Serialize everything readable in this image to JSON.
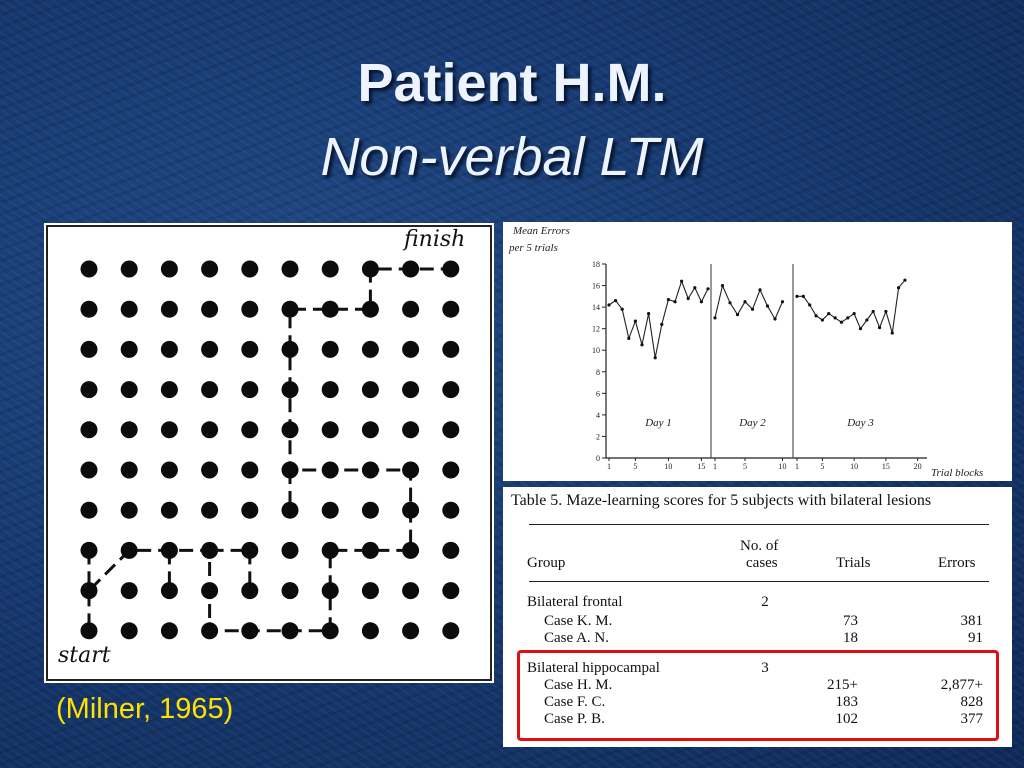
{
  "slide": {
    "title": "Patient H.M.",
    "subtitle": "Non-verbal LTM",
    "citation": "(Milner, 1965)"
  },
  "maze": {
    "label_finish": "finish",
    "label_start": "start",
    "grid_size": 10,
    "path": [
      [
        0,
        2
      ],
      [
        0,
        1
      ],
      [
        1,
        2
      ],
      [
        2,
        2
      ],
      [
        3,
        2
      ],
      [
        3,
        1
      ],
      [
        3,
        0
      ],
      [
        4,
        0
      ],
      [
        5,
        0
      ],
      [
        6,
        0
      ],
      [
        6,
        1
      ],
      [
        6,
        2
      ],
      [
        7,
        2
      ],
      [
        8,
        2
      ],
      [
        8,
        3
      ],
      [
        8,
        4
      ],
      [
        7,
        4
      ],
      [
        6,
        4
      ],
      [
        5,
        4
      ],
      [
        5,
        5
      ],
      [
        5,
        6
      ],
      [
        5,
        7
      ],
      [
        5,
        8
      ],
      [
        6,
        8
      ],
      [
        7,
        8
      ],
      [
        7,
        9
      ],
      [
        8,
        9
      ],
      [
        9,
        9
      ]
    ],
    "stubs": [
      [
        [
          0,
          2
        ],
        [
          0,
          0
        ]
      ],
      [
        [
          2,
          2
        ],
        [
          2,
          1
        ]
      ],
      [
        [
          3,
          2
        ],
        [
          4,
          2
        ]
      ],
      [
        [
          4,
          2
        ],
        [
          4,
          1
        ]
      ],
      [
        [
          5,
          4
        ],
        [
          5,
          3
        ]
      ]
    ]
  },
  "chart_data": {
    "type": "line",
    "ylabel": "Mean Errors per 5 trials",
    "xlabel": "Trial blocks",
    "ylim": [
      0,
      18
    ],
    "yticks": [
      0,
      2,
      4,
      6,
      8,
      10,
      12,
      14,
      16,
      18
    ],
    "grid": false,
    "days": [
      {
        "name": "Day 1",
        "xticks": [
          "1",
          "5",
          "10",
          "15"
        ],
        "max_x": 16,
        "values": [
          14.2,
          14.6,
          13.8,
          11.1,
          12.7,
          10.5,
          13.4,
          9.3,
          12.4,
          14.7,
          14.5,
          16.4,
          14.8,
          15.8,
          14.5,
          15.7
        ]
      },
      {
        "name": "Day 2",
        "xticks": [
          "1",
          "5",
          "10"
        ],
        "max_x": 11,
        "values": [
          13.0,
          16.0,
          14.4,
          13.3,
          14.5,
          13.8,
          15.6,
          14.1,
          12.9,
          14.5
        ]
      },
      {
        "name": "Day 3",
        "xticks": [
          "1",
          "5",
          "10",
          "15",
          "20"
        ],
        "max_x": 21,
        "values": [
          15.0,
          15.0,
          14.2,
          13.2,
          12.8,
          13.4,
          13.0,
          12.6,
          13.0,
          13.4,
          12.0,
          12.8,
          13.6,
          12.1,
          13.6,
          11.6,
          15.8,
          16.5
        ]
      }
    ]
  },
  "table": {
    "caption": "Table 5.  Maze-learning scores for 5 subjects with bilateral lesions",
    "headers": {
      "group": "Group",
      "cases_line1": "No. of",
      "cases_line2": "cases",
      "trials": "Trials",
      "errors": "Errors"
    },
    "rows": [
      {
        "group": "Bilateral frontal",
        "cases": "2",
        "trials": "",
        "errors": "",
        "indent": false
      },
      {
        "group": "Case K. M.",
        "cases": "",
        "trials": "73",
        "errors": "381",
        "indent": true
      },
      {
        "group": "Case A. N.",
        "cases": "",
        "trials": "18",
        "errors": "91",
        "indent": true
      },
      {
        "group": "Bilateral hippocampal",
        "cases": "3",
        "trials": "",
        "errors": "",
        "indent": false
      },
      {
        "group": "Case H. M.",
        "cases": "",
        "trials": "215+",
        "errors": "2,877+",
        "indent": true
      },
      {
        "group": "Case F. C.",
        "cases": "",
        "trials": "183",
        "errors": "828",
        "indent": true
      },
      {
        "group": "Case P. B.",
        "cases": "",
        "trials": "102",
        "errors": "377",
        "indent": true
      }
    ],
    "highlight_color": "#e01010"
  }
}
